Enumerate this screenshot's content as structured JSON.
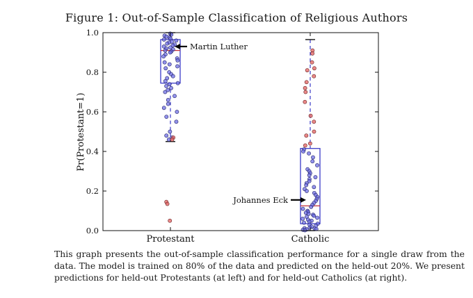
{
  "figure": {
    "title": "Figure 1: Out-of-Sample Classification of Religious Authors",
    "caption": "This graph presents the out-of-sample classification performance for a single draw from the data. The model is trained on 80% of the data and predicted on the held-out 20%. We present predictions for held-out Protestants (at left) and for held-out Catholics (at right)."
  },
  "chart_data": {
    "type": "scatter",
    "subtype": "box-plot-with-jittered-points",
    "title": "",
    "xlabel": "",
    "ylabel": "Pr(Protestant=1)",
    "ylim": [
      0.0,
      1.0
    ],
    "yticks": [
      "0.0",
      "0.2",
      "0.4",
      "0.6",
      "0.8",
      "1.0"
    ],
    "categories": [
      "Protestant",
      "Catholic"
    ],
    "grid": false,
    "colors": {
      "box": "#3a3ac8",
      "median": "#c0303a",
      "point_fill": "#6f6fe6",
      "point_outlier": "#e56a6a",
      "point_edge": "#222266"
    },
    "boxes": [
      {
        "category": "Protestant",
        "whisker_low": 0.45,
        "q1": 0.745,
        "median": 0.91,
        "q3": 0.965,
        "whisker_high": 1.0
      },
      {
        "category": "Catholic",
        "whisker_low": 0.0,
        "q1": 0.035,
        "median": 0.125,
        "q3": 0.415,
        "whisker_high": 0.965
      }
    ],
    "series": [
      {
        "category": "Protestant",
        "values": [
          0.995,
          0.99,
          0.985,
          0.98,
          0.975,
          0.97,
          0.965,
          0.96,
          0.955,
          0.95,
          0.945,
          0.94,
          0.935,
          0.93,
          0.925,
          0.92,
          0.915,
          0.91,
          0.905,
          0.9,
          0.89,
          0.88,
          0.87,
          0.86,
          0.85,
          0.84,
          0.83,
          0.82,
          0.8,
          0.79,
          0.78,
          0.77,
          0.755,
          0.745,
          0.74,
          0.73,
          0.72,
          0.71,
          0.7,
          0.68,
          0.66,
          0.64,
          0.62,
          0.6,
          0.575,
          0.55,
          0.5,
          0.48,
          0.47,
          0.46
        ],
        "outliers": [
          0.47,
          0.46,
          0.145,
          0.135,
          0.05
        ]
      },
      {
        "category": "Catholic",
        "values": [
          0.41,
          0.4,
          0.39,
          0.37,
          0.35,
          0.33,
          0.31,
          0.3,
          0.29,
          0.28,
          0.27,
          0.26,
          0.25,
          0.24,
          0.23,
          0.22,
          0.21,
          0.2,
          0.19,
          0.18,
          0.17,
          0.16,
          0.15,
          0.14,
          0.13,
          0.12,
          0.11,
          0.1,
          0.095,
          0.09,
          0.085,
          0.08,
          0.075,
          0.07,
          0.065,
          0.06,
          0.055,
          0.05,
          0.045,
          0.04,
          0.035,
          0.03,
          0.025,
          0.02,
          0.015,
          0.012,
          0.01,
          0.008,
          0.006,
          0.004,
          0.002
        ],
        "outliers": [
          0.91,
          0.895,
          0.85,
          0.82,
          0.81,
          0.78,
          0.75,
          0.72,
          0.7,
          0.65,
          0.58,
          0.55,
          0.5,
          0.48,
          0.44,
          0.43
        ]
      }
    ],
    "annotations": [
      {
        "text": "Martin Luther",
        "category": "Protestant",
        "y": 0.93,
        "direction": "points-left"
      },
      {
        "text": "Johannes Eck",
        "category": "Catholic",
        "y": 0.155,
        "direction": "points-right"
      }
    ]
  }
}
